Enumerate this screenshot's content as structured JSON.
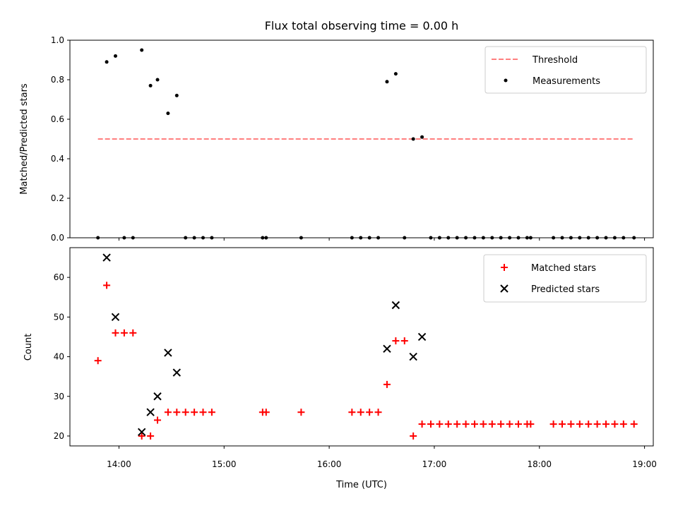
{
  "chart_data": [
    {
      "type": "scatter",
      "title": "Flux total observing time = 0.00 h",
      "xlabel": "",
      "ylabel": "Matched/Predicted stars",
      "xlim": [
        "13:32",
        "19:05"
      ],
      "ylim": [
        0.0,
        1.0
      ],
      "yticks": [
        0.0,
        0.2,
        0.4,
        0.6,
        0.8,
        1.0
      ],
      "ytick_labels": [
        "0.0",
        "0.2",
        "0.4",
        "0.6",
        "0.8",
        "1.0"
      ],
      "legend_position": "top-right",
      "threshold": {
        "name": "Threshold",
        "color": "#ff7f7f",
        "style": "dashed",
        "y": 0.5,
        "x_range": [
          "13:48",
          "18:54"
        ]
      },
      "series": [
        {
          "name": "Measurements",
          "marker": "dot",
          "color": "#000000",
          "points": [
            [
              "13:48",
              0.0
            ],
            [
              "13:53",
              0.89
            ],
            [
              "13:58",
              0.92
            ],
            [
              "14:03",
              0.0
            ],
            [
              "14:08",
              0.0
            ],
            [
              "14:13",
              0.95
            ],
            [
              "14:18",
              0.77
            ],
            [
              "14:22",
              0.8
            ],
            [
              "14:28",
              0.63
            ],
            [
              "14:33",
              0.72
            ],
            [
              "14:38",
              0.0
            ],
            [
              "14:43",
              0.0
            ],
            [
              "14:48",
              0.0
            ],
            [
              "14:53",
              0.0
            ],
            [
              "15:22",
              0.0
            ],
            [
              "15:24",
              0.0
            ],
            [
              "15:44",
              0.0
            ],
            [
              "16:13",
              0.0
            ],
            [
              "16:18",
              0.0
            ],
            [
              "16:23",
              0.0
            ],
            [
              "16:28",
              0.0
            ],
            [
              "16:33",
              0.79
            ],
            [
              "16:38",
              0.83
            ],
            [
              "16:43",
              0.0
            ],
            [
              "16:48",
              0.5
            ],
            [
              "16:53",
              0.51
            ],
            [
              "16:58",
              0.0
            ],
            [
              "17:03",
              0.0
            ],
            [
              "17:08",
              0.0
            ],
            [
              "17:13",
              0.0
            ],
            [
              "17:18",
              0.0
            ],
            [
              "17:23",
              0.0
            ],
            [
              "17:28",
              0.0
            ],
            [
              "17:33",
              0.0
            ],
            [
              "17:38",
              0.0
            ],
            [
              "17:43",
              0.0
            ],
            [
              "17:48",
              0.0
            ],
            [
              "17:53",
              0.0
            ],
            [
              "17:55",
              0.0
            ],
            [
              "18:08",
              0.0
            ],
            [
              "18:13",
              0.0
            ],
            [
              "18:18",
              0.0
            ],
            [
              "18:23",
              0.0
            ],
            [
              "18:28",
              0.0
            ],
            [
              "18:33",
              0.0
            ],
            [
              "18:38",
              0.0
            ],
            [
              "18:43",
              0.0
            ],
            [
              "18:48",
              0.0
            ],
            [
              "18:54",
              0.0
            ]
          ]
        }
      ]
    },
    {
      "type": "scatter",
      "title": "",
      "xlabel": "Time (UTC)",
      "ylabel": "Count",
      "xlim": [
        "13:32",
        "19:05"
      ],
      "ylim": [
        17.5,
        67.5
      ],
      "xticks": [
        "14:00",
        "15:00",
        "16:00",
        "17:00",
        "18:00",
        "19:00"
      ],
      "yticks": [
        20,
        30,
        40,
        50,
        60
      ],
      "legend_position": "top-right",
      "series": [
        {
          "name": "Matched stars",
          "marker": "plus",
          "color": "#ff0000",
          "points": [
            [
              "13:48",
              39
            ],
            [
              "13:53",
              58
            ],
            [
              "13:58",
              46
            ],
            [
              "14:03",
              46
            ],
            [
              "14:08",
              46
            ],
            [
              "14:13",
              20
            ],
            [
              "14:18",
              20
            ],
            [
              "14:22",
              24
            ],
            [
              "14:28",
              26
            ],
            [
              "14:33",
              26
            ],
            [
              "14:38",
              26
            ],
            [
              "14:43",
              26
            ],
            [
              "14:48",
              26
            ],
            [
              "14:53",
              26
            ],
            [
              "15:22",
              26
            ],
            [
              "15:24",
              26
            ],
            [
              "15:44",
              26
            ],
            [
              "16:13",
              26
            ],
            [
              "16:18",
              26
            ],
            [
              "16:23",
              26
            ],
            [
              "16:28",
              26
            ],
            [
              "16:33",
              33
            ],
            [
              "16:38",
              44
            ],
            [
              "16:43",
              44
            ],
            [
              "16:48",
              20
            ],
            [
              "16:53",
              23
            ],
            [
              "16:58",
              23
            ],
            [
              "17:03",
              23
            ],
            [
              "17:08",
              23
            ],
            [
              "17:13",
              23
            ],
            [
              "17:18",
              23
            ],
            [
              "17:23",
              23
            ],
            [
              "17:28",
              23
            ],
            [
              "17:33",
              23
            ],
            [
              "17:38",
              23
            ],
            [
              "17:43",
              23
            ],
            [
              "17:48",
              23
            ],
            [
              "17:53",
              23
            ],
            [
              "17:55",
              23
            ],
            [
              "18:08",
              23
            ],
            [
              "18:13",
              23
            ],
            [
              "18:18",
              23
            ],
            [
              "18:23",
              23
            ],
            [
              "18:28",
              23
            ],
            [
              "18:33",
              23
            ],
            [
              "18:38",
              23
            ],
            [
              "18:43",
              23
            ],
            [
              "18:48",
              23
            ],
            [
              "18:54",
              23
            ]
          ]
        },
        {
          "name": "Predicted stars",
          "marker": "x",
          "color": "#000000",
          "points": [
            [
              "13:53",
              65
            ],
            [
              "13:58",
              50
            ],
            [
              "14:13",
              21
            ],
            [
              "14:18",
              26
            ],
            [
              "14:22",
              30
            ],
            [
              "14:28",
              41
            ],
            [
              "14:33",
              36
            ],
            [
              "16:33",
              42
            ],
            [
              "16:38",
              53
            ],
            [
              "16:48",
              40
            ],
            [
              "16:53",
              45
            ]
          ]
        }
      ]
    }
  ]
}
